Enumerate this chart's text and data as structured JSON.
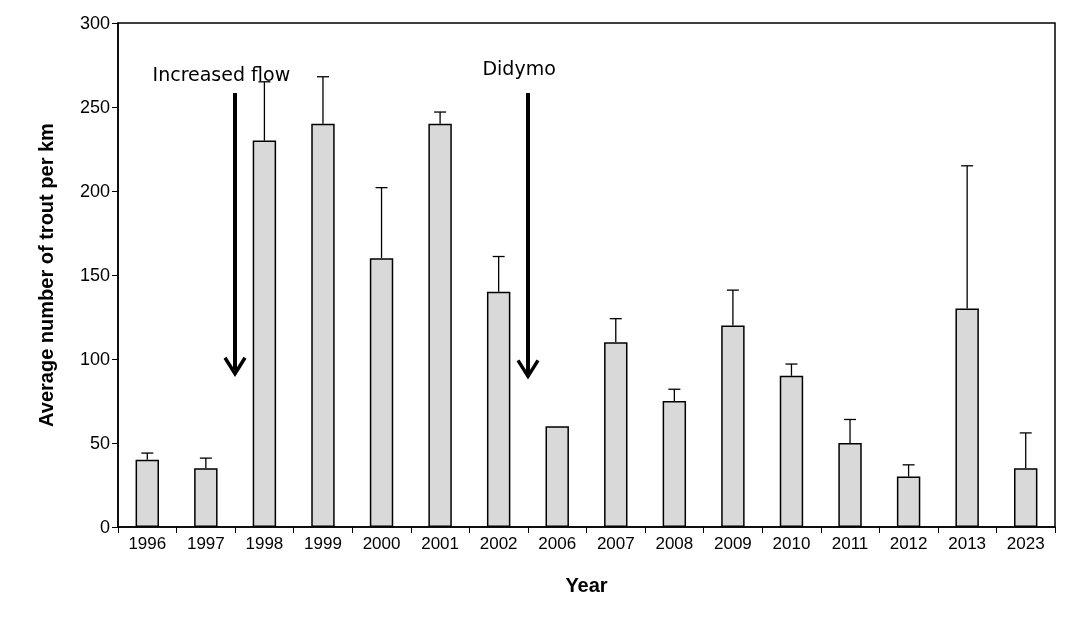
{
  "chart_data": {
    "type": "bar",
    "xlabel": "Year",
    "ylabel": "Average number of trout per km",
    "categories": [
      "1996",
      "1997",
      "1998",
      "1999",
      "2000",
      "2001",
      "2002",
      "2006",
      "2007",
      "2008",
      "2009",
      "2010",
      "2011",
      "2012",
      "2013",
      "2023"
    ],
    "values": [
      40,
      35,
      230,
      240,
      160,
      240,
      140,
      60,
      110,
      75,
      120,
      90,
      50,
      30,
      130,
      35
    ],
    "errors": [
      [
        40,
        44
      ],
      [
        35,
        41
      ],
      [
        230,
        265
      ],
      [
        240,
        268
      ],
      [
        160,
        202
      ],
      [
        240,
        247
      ],
      [
        140,
        161
      ],
      null,
      [
        110,
        124
      ],
      [
        75,
        82
      ],
      [
        120,
        141
      ],
      [
        90,
        97
      ],
      [
        50,
        64
      ],
      [
        30,
        37
      ],
      [
        130,
        215
      ],
      [
        35,
        56
      ]
    ],
    "color": "#d9d9d9",
    "ylim": [
      0,
      300
    ],
    "yticks": [
      0,
      50,
      100,
      150,
      200,
      250,
      300
    ],
    "grid": false,
    "annotations": [
      "Increased flow",
      "Didymo"
    ]
  }
}
